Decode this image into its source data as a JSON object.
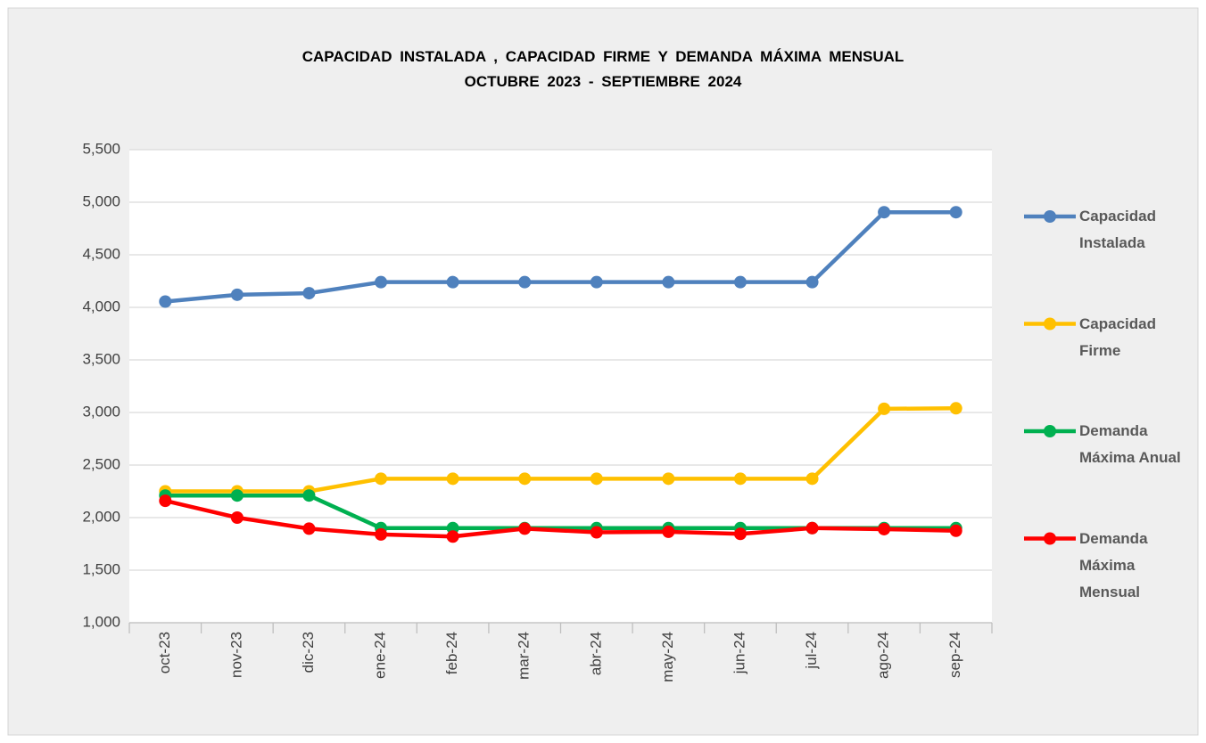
{
  "chart_data": {
    "type": "line",
    "title": "CAPACIDAD  INSTALADA , CAPACIDAD  FIRME  Y   DEMANDA  MÁXIMA  MENSUAL",
    "subtitle": "OCTUBRE  2023   -   SEPTIEMBRE  2024",
    "categories": [
      "oct-23",
      "nov-23",
      "dic-23",
      "ene-24",
      "feb-24",
      "mar-24",
      "abr-24",
      "may-24",
      "jun-24",
      "jul-24",
      "ago-24",
      "sep-24"
    ],
    "series": [
      {
        "name": "Capacidad Instalada",
        "color": "#4f81bd",
        "values": [
          4055,
          4120,
          4135,
          4240,
          4240,
          4240,
          4240,
          4240,
          4240,
          4240,
          4905,
          4905
        ]
      },
      {
        "name": "Capacidad Firme",
        "color": "#ffc000",
        "values": [
          2250,
          2250,
          2250,
          2370,
          2370,
          2370,
          2370,
          2370,
          2370,
          2370,
          3035,
          3040
        ]
      },
      {
        "name": "Demanda Máxima Anual",
        "color": "#00b050",
        "values": [
          2210,
          2210,
          2210,
          1900,
          1900,
          1900,
          1900,
          1900,
          1900,
          1900,
          1900,
          1900
        ]
      },
      {
        "name": "Demanda Máxima Mensual",
        "color": "#ff0000",
        "values": [
          2160,
          2000,
          1895,
          1840,
          1820,
          1895,
          1860,
          1865,
          1845,
          1900,
          1890,
          1875
        ]
      }
    ],
    "ylim": [
      1000,
      5500
    ],
    "yticks": [
      {
        "value": 1000,
        "label": "1,000"
      },
      {
        "value": 1500,
        "label": "1,500"
      },
      {
        "value": 2000,
        "label": "2,000"
      },
      {
        "value": 2500,
        "label": "2,500"
      },
      {
        "value": 3000,
        "label": "3,000"
      },
      {
        "value": 3500,
        "label": "3,500"
      },
      {
        "value": 4000,
        "label": "4,000"
      },
      {
        "value": 4500,
        "label": "4,500"
      },
      {
        "value": 5000,
        "label": "5,000"
      },
      {
        "value": 5500,
        "label": "5,500"
      }
    ],
    "grid": true,
    "legend": "right"
  }
}
